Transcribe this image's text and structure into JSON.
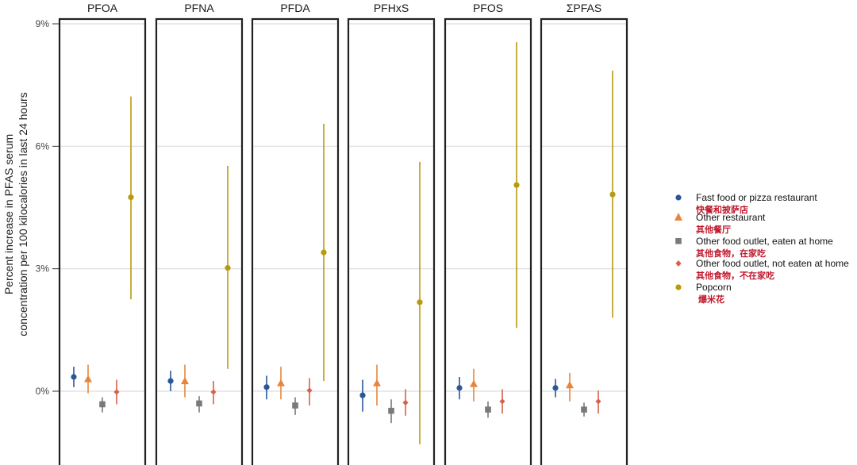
{
  "chart_data": {
    "type": "scatter",
    "subtype": "point-range facets",
    "ylabel_lines": [
      "Percent increase in PFAS serum",
      "concentration per 100 kilocalories in last 24 hours"
    ],
    "ylim": [
      -1.8,
      9.0
    ],
    "yticks": [
      0,
      3,
      6,
      9
    ],
    "ytick_labels": [
      "0%",
      "3%",
      "6%",
      "9%"
    ],
    "grid": true,
    "legend_position": "right",
    "panels": [
      "PFOA",
      "PFNA",
      "PFDA",
      "PFHxS",
      "PFOS",
      "ΣPFAS"
    ],
    "series": [
      {
        "name": "Fast food or pizza restaurant",
        "name_zh": "快餐和披萨店",
        "marker": "circle",
        "color": "#2b5797",
        "estimates": [
          0.35,
          0.25,
          0.1,
          -0.1,
          0.08,
          0.08
        ],
        "lower": [
          0.1,
          0.0,
          -0.2,
          -0.5,
          -0.2,
          -0.15
        ],
        "upper": [
          0.6,
          0.5,
          0.38,
          0.28,
          0.35,
          0.3
        ]
      },
      {
        "name": "Other restaurant",
        "name_zh": "其他餐厅",
        "marker": "triangle",
        "color": "#e8853a",
        "estimates": [
          0.3,
          0.25,
          0.2,
          0.2,
          0.18,
          0.15
        ],
        "lower": [
          -0.05,
          -0.15,
          -0.2,
          -0.35,
          -0.25,
          -0.25
        ],
        "upper": [
          0.65,
          0.65,
          0.6,
          0.65,
          0.55,
          0.45
        ]
      },
      {
        "name": "Other food outlet, eaten at home",
        "name_zh": "其他食物，在家吃",
        "marker": "square",
        "color": "#7a7a7a",
        "estimates": [
          -0.32,
          -0.3,
          -0.35,
          -0.48,
          -0.45,
          -0.45
        ],
        "lower": [
          -0.52,
          -0.52,
          -0.58,
          -0.78,
          -0.65,
          -0.62
        ],
        "upper": [
          -0.15,
          -0.12,
          -0.15,
          -0.2,
          -0.25,
          -0.28
        ]
      },
      {
        "name": "Other food outlet, not eaten at home",
        "name_zh": "其他食物，不在家吃",
        "marker": "diamond",
        "color": "#d9614a",
        "estimates": [
          -0.02,
          -0.02,
          0.02,
          -0.28,
          -0.25,
          -0.25
        ],
        "lower": [
          -0.32,
          -0.32,
          -0.35,
          -0.6,
          -0.55,
          -0.55
        ],
        "upper": [
          0.28,
          0.25,
          0.32,
          0.05,
          0.05,
          0.02
        ]
      },
      {
        "name": "Popcorn",
        "name_zh": "爆米花",
        "marker": "circle",
        "color": "#b89a10",
        "estimates": [
          4.75,
          3.02,
          3.4,
          2.18,
          5.05,
          4.82
        ],
        "lower": [
          2.25,
          0.55,
          0.25,
          -1.3,
          1.55,
          1.8
        ],
        "upper": [
          7.22,
          5.52,
          6.55,
          5.62,
          8.55,
          7.85
        ]
      }
    ]
  }
}
